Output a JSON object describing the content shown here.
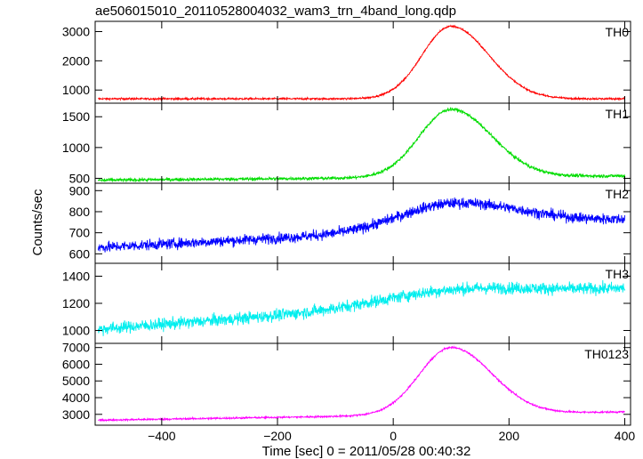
{
  "chart_data": {
    "type": "line",
    "title": "ae506015010_20110528004032_wam3_trn_4band_long.qdp",
    "xlabel": "Time [sec] 0 = 2011/05/28 00:40:32",
    "ylabel": "Counts/sec",
    "xlim": [
      -515,
      410
    ],
    "x_ticks": [
      -400,
      -200,
      0,
      200,
      400
    ],
    "grid": false,
    "panels": [
      {
        "name": "TH0",
        "color": "#ff0000",
        "ylim": [
          550,
          3350
        ],
        "y_ticks": [
          1000,
          2000,
          3000
        ],
        "profile": {
          "baseline_start": 700,
          "baseline_end": 700,
          "peak": 3180,
          "peak_time": 100,
          "rise_width": 50,
          "fall_width": 65,
          "noise": 30
        }
      },
      {
        "name": "TH1",
        "color": "#00dd00",
        "ylim": [
          420,
          1720
        ],
        "y_ticks": [
          500,
          1000,
          1500
        ],
        "profile": {
          "baseline_start": 470,
          "baseline_end": 540,
          "peak": 1620,
          "peak_time": 100,
          "rise_width": 55,
          "fall_width": 70,
          "noise": 25
        }
      },
      {
        "name": "TH2",
        "color": "#0000ff",
        "ylim": [
          555,
          935
        ],
        "y_ticks": [
          600,
          700,
          800,
          900
        ],
        "profile": {
          "baseline_start": 630,
          "baseline_end": 760,
          "peak": 840,
          "peak_time": 100,
          "rise_width": 90,
          "fall_width": 120,
          "noise": 24
        }
      },
      {
        "name": "TH3",
        "color": "#00eeee",
        "ylim": [
          905,
          1495
        ],
        "y_ticks": [
          1000,
          1200,
          1400
        ],
        "profile": {
          "baseline_start": 1010,
          "baseline_end": 1300,
          "peak": 1300,
          "peak_time": 100,
          "rise_width": 120,
          "fall_width": 150,
          "noise": 42
        }
      },
      {
        "name": "TH0123",
        "color": "#ff00ff",
        "ylim": [
          2350,
          7250
        ],
        "y_ticks": [
          3000,
          4000,
          5000,
          6000,
          7000
        ],
        "profile": {
          "baseline_start": 2650,
          "baseline_end": 3150,
          "peak": 7000,
          "peak_time": 100,
          "rise_width": 55,
          "fall_width": 70,
          "noise": 50
        }
      }
    ]
  }
}
